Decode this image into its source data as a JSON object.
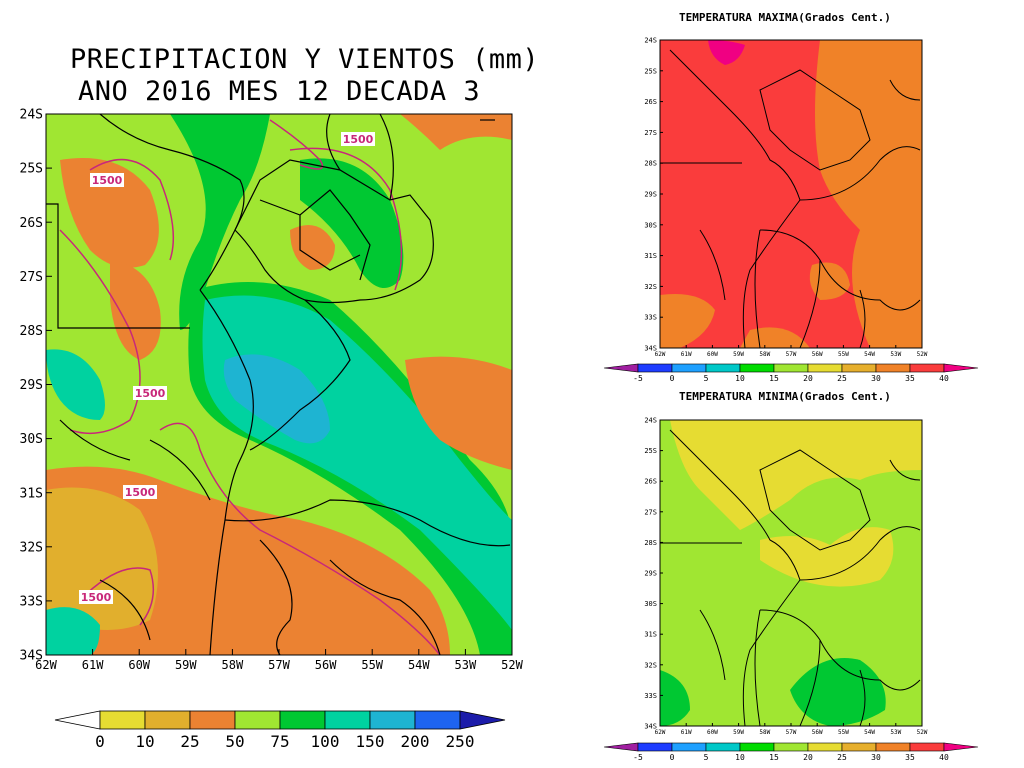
{
  "main_map": {
    "title_line1": "PRECIPITACION Y VIENTOS (mm)",
    "title_line2": "ANO 2016 MES 12 DECADA 3",
    "lat_labels": [
      "24S",
      "25S",
      "26S",
      "27S",
      "28S",
      "29S",
      "30S",
      "31S",
      "32S",
      "33S",
      "34S"
    ],
    "lon_labels": [
      "62W",
      "61W",
      "60W",
      "59W",
      "58W",
      "57W",
      "56W",
      "55W",
      "54W",
      "53W",
      "52W"
    ],
    "contour_label": "1500",
    "colorbar": {
      "labels": [
        "0",
        "10",
        "25",
        "50",
        "75",
        "100",
        "150",
        "200",
        "250"
      ],
      "colors": [
        "#e6dc32",
        "#e1af2d",
        "#eb8232",
        "#a0e632",
        "#00c832",
        "#00d2a0",
        "#1eb4d2",
        "#1e64f0",
        "#1c1caa"
      ]
    }
  },
  "tmax_map": {
    "title": "TEMPERATURA MAXIMA(Grados Cent.)",
    "lat_labels": [
      "24S",
      "25S",
      "26S",
      "27S",
      "28S",
      "29S",
      "30S",
      "31S",
      "32S",
      "33S",
      "34S"
    ],
    "lon_labels": [
      "62W",
      "61W",
      "60W",
      "59W",
      "58W",
      "57W",
      "56W",
      "55W",
      "54W",
      "53W",
      "52W"
    ]
  },
  "tmin_map": {
    "title": "TEMPERATURA MINIMA(Grados Cent.)",
    "lat_labels": [
      "24S",
      "25S",
      "26S",
      "27S",
      "28S",
      "29S",
      "30S",
      "31S",
      "32S",
      "33S",
      "34S"
    ],
    "lon_labels": [
      "62W",
      "61W",
      "60W",
      "59W",
      "58W",
      "57W",
      "56W",
      "55W",
      "54W",
      "53W",
      "52W"
    ]
  },
  "temp_colorbar": {
    "labels": [
      "-5",
      "0",
      "5",
      "10",
      "15",
      "20",
      "25",
      "30",
      "35",
      "40"
    ],
    "colors": [
      "#a01ea0",
      "#1e3cff",
      "#1ea0ff",
      "#00c8c8",
      "#00dc00",
      "#a0e632",
      "#e6dc32",
      "#e6af2d",
      "#f08228",
      "#fa3c3c",
      "#f00082"
    ]
  }
}
